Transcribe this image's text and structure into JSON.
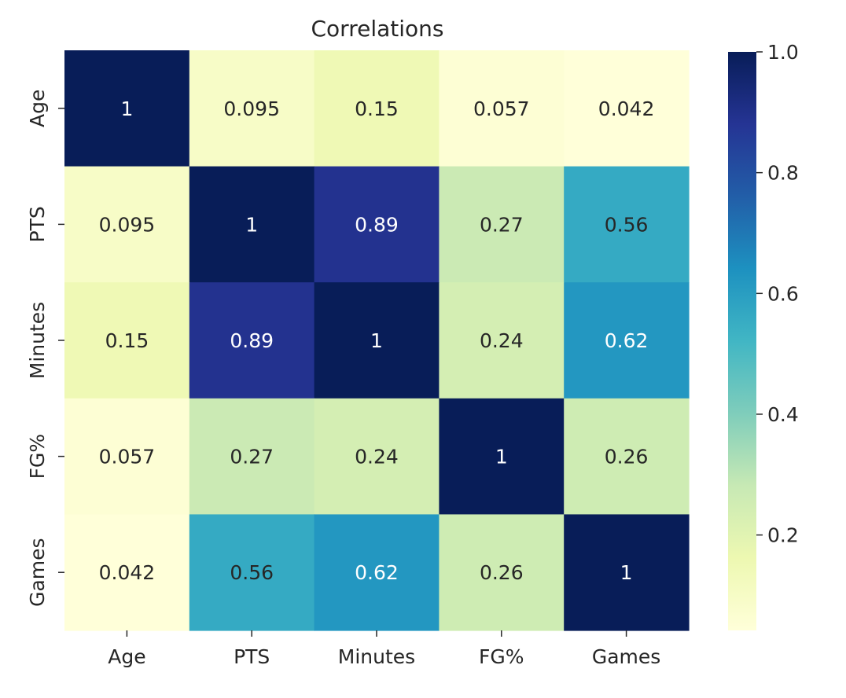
{
  "chart_data": {
    "type": "heatmap",
    "title": "Correlations",
    "xlabel": "",
    "ylabel": "",
    "x_categories": [
      "Age",
      "PTS",
      "Minutes",
      "FG%",
      "Games"
    ],
    "y_categories": [
      "Age",
      "PTS",
      "Minutes",
      "FG%",
      "Games"
    ],
    "values": [
      [
        1,
        0.095,
        0.15,
        0.057,
        0.042
      ],
      [
        0.095,
        1,
        0.89,
        0.27,
        0.56
      ],
      [
        0.15,
        0.89,
        1,
        0.24,
        0.62
      ],
      [
        0.057,
        0.27,
        0.24,
        1,
        0.26
      ],
      [
        0.042,
        0.56,
        0.62,
        0.26,
        1
      ]
    ],
    "annotations": [
      [
        "1",
        "0.095",
        "0.15",
        "0.057",
        "0.042"
      ],
      [
        "0.095",
        "1",
        "0.89",
        "0.27",
        "0.56"
      ],
      [
        "0.15",
        "0.89",
        "1",
        "0.24",
        "0.62"
      ],
      [
        "0.057",
        "0.27",
        "0.24",
        "1",
        "0.26"
      ],
      [
        "0.042",
        "0.56",
        "0.62",
        "0.26",
        "1"
      ]
    ],
    "colorbar": {
      "min": 0.042,
      "max": 1.0,
      "ticks": [
        "0.2",
        "0.4",
        "0.6",
        "0.8",
        "1.0"
      ],
      "tick_values": [
        0.2,
        0.4,
        0.6,
        0.8,
        1.0
      ],
      "colormap": "YlGnBu",
      "colormap_stops": [
        "#ffffd9",
        "#edf8b1",
        "#c7e9b4",
        "#7fcdbb",
        "#41b6c4",
        "#1d91c0",
        "#225ea8",
        "#253494",
        "#081d58"
      ]
    },
    "grid": false,
    "legend": "colorbar-right"
  }
}
